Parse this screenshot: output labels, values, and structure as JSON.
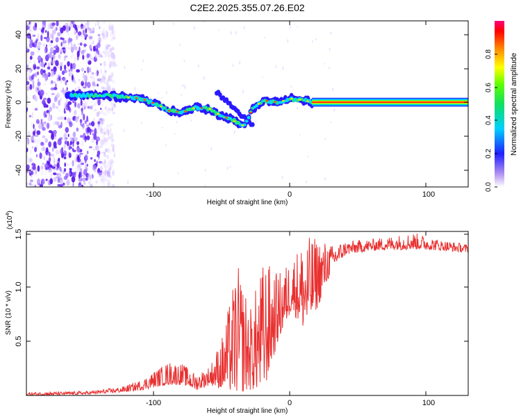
{
  "figure": {
    "title": "C2E2.2025.355.07.26.E02"
  },
  "chart_data": [
    {
      "type": "heatmap",
      "xlabel": "Height of straight line (km)",
      "ylabel": "Frequency (Hz)",
      "xlim": [
        -195,
        130
      ],
      "ylim": [
        -50,
        48
      ],
      "x_ticks": [
        "-100",
        "0",
        "100"
      ],
      "y_ticks": [
        "-40",
        "-20",
        "0",
        "20",
        "40"
      ],
      "colorbar": {
        "label": "Normalized spectral amplitude",
        "range": [
          0,
          1
        ],
        "ticks": [
          "0.0",
          "0.2",
          "0.4",
          "0.6",
          "0.8"
        ]
      },
      "ridge": [
        {
          "x": -165,
          "y": 4
        },
        {
          "x": -150,
          "y": 4
        },
        {
          "x": -135,
          "y": 4
        },
        {
          "x": -120,
          "y": 3
        },
        {
          "x": -110,
          "y": 2
        },
        {
          "x": -100,
          "y": -1
        },
        {
          "x": -90,
          "y": -5
        },
        {
          "x": -80,
          "y": -6
        },
        {
          "x": -70,
          "y": -3
        },
        {
          "x": -60,
          "y": -4
        },
        {
          "x": -52,
          "y": -8
        },
        {
          "x": -45,
          "y": -10
        },
        {
          "x": -35,
          "y": -14
        },
        {
          "x": -28,
          "y": -3
        },
        {
          "x": -20,
          "y": 1
        },
        {
          "x": -10,
          "y": 0
        },
        {
          "x": 0,
          "y": 2
        },
        {
          "x": 10,
          "y": 1
        },
        {
          "x": 15,
          "y": 0
        },
        {
          "x": 130,
          "y": 0
        }
      ]
    },
    {
      "type": "line",
      "xlabel": "Height of straight line (km)",
      "ylabel": "SNR (10 * v/v)",
      "y_multiplier": "(x10",
      "y_multiplier_exp": "4",
      "y_multiplier_close": ")",
      "xlim": [
        -195,
        130
      ],
      "ylim": [
        0,
        1.55
      ],
      "x_ticks": [
        "-100",
        "0",
        "100"
      ],
      "y_ticks": [
        "0.5",
        "1.0",
        "1.5"
      ],
      "series": [
        {
          "name": "SNR",
          "color": "#e83030",
          "envelope": [
            {
              "x": -195,
              "lo": 0.0,
              "hi": 0.03
            },
            {
              "x": -150,
              "lo": 0.01,
              "hi": 0.04
            },
            {
              "x": -125,
              "lo": 0.03,
              "hi": 0.08
            },
            {
              "x": -110,
              "lo": 0.05,
              "hi": 0.15
            },
            {
              "x": -100,
              "lo": 0.08,
              "hi": 0.24
            },
            {
              "x": -90,
              "lo": 0.1,
              "hi": 0.32
            },
            {
              "x": -80,
              "lo": 0.1,
              "hi": 0.3
            },
            {
              "x": -70,
              "lo": 0.05,
              "hi": 0.2
            },
            {
              "x": -60,
              "lo": 0.1,
              "hi": 0.28
            },
            {
              "x": -50,
              "lo": 0.05,
              "hi": 0.6
            },
            {
              "x": -40,
              "lo": 0.02,
              "hi": 1.25
            },
            {
              "x": -30,
              "lo": 0.05,
              "hi": 0.85
            },
            {
              "x": -20,
              "lo": 0.05,
              "hi": 1.3
            },
            {
              "x": -10,
              "lo": 0.5,
              "hi": 1.15
            },
            {
              "x": 0,
              "lo": 0.8,
              "hi": 1.3
            },
            {
              "x": 10,
              "lo": 0.6,
              "hi": 1.5
            },
            {
              "x": 20,
              "lo": 0.85,
              "hi": 1.5
            },
            {
              "x": 30,
              "lo": 1.2,
              "hi": 1.42
            },
            {
              "x": 40,
              "lo": 1.33,
              "hi": 1.46
            },
            {
              "x": 60,
              "lo": 1.37,
              "hi": 1.48
            },
            {
              "x": 90,
              "lo": 1.38,
              "hi": 1.54
            },
            {
              "x": 110,
              "lo": 1.37,
              "hi": 1.47
            },
            {
              "x": 130,
              "lo": 1.35,
              "hi": 1.43
            }
          ]
        }
      ]
    }
  ]
}
